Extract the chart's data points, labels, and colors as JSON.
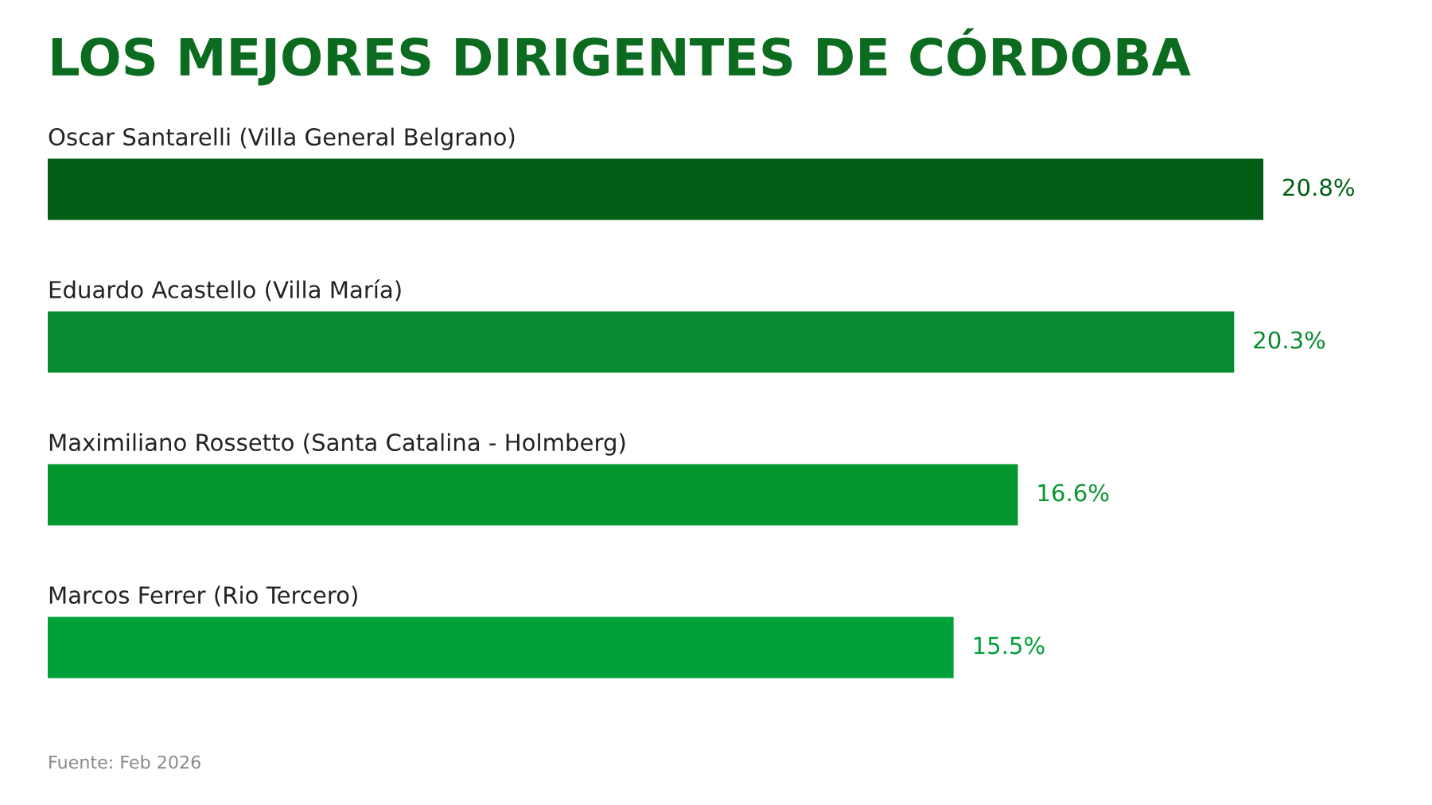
{
  "chart_data": {
    "type": "bar",
    "orientation": "horizontal",
    "title": "LOS MEJORES DIRIGENTES DE CÓRDOBA",
    "categories": [
      "Oscar Santarelli (Villa General Belgrano)",
      "Eduardo Acastello (Villa María)",
      "Maximiliano Rossetto (Santa Catalina - Holmberg)",
      "Marcos Ferrer (Rio Tercero)"
    ],
    "values": [
      20.8,
      20.3,
      16.6,
      15.5
    ],
    "colors": [
      "#005f14",
      "#078b30",
      "#04962f",
      "#00a03a"
    ],
    "value_labels": [
      "20.8%",
      "20.3%",
      "16.6%",
      "15.5%"
    ],
    "annotations": [
      "Fuente: Feb 2026"
    ]
  }
}
